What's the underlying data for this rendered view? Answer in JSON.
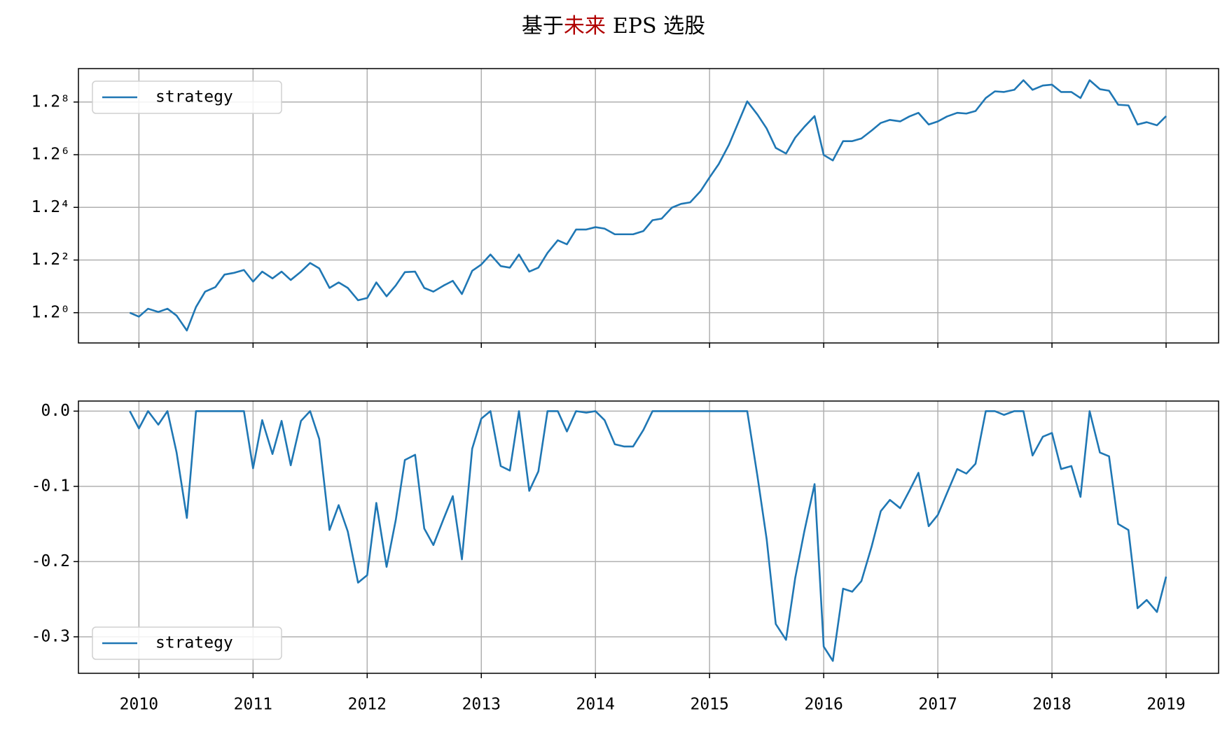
{
  "figure": {
    "title": [
      "基于",
      "未来",
      "EPS 选股"
    ],
    "title_colors": [
      "#000000",
      "#b00000",
      "#000000"
    ]
  },
  "chart_data": [
    {
      "type": "line",
      "yscale": "log",
      "grid": true,
      "legend": "upper left",
      "show_xticklabels": false,
      "xlim": [
        2009.47,
        2019.46
      ],
      "xticks": [
        2010,
        2011,
        2012,
        2013,
        2014,
        2015,
        2016,
        2017,
        2018,
        2019
      ],
      "ylim": [
        0.811,
        5.42
      ],
      "yticks": [
        {
          "value": 1,
          "label": "1.2⁰"
        },
        {
          "value": 1.44,
          "label": "1.2²"
        },
        {
          "value": 2.0736,
          "label": "1.2⁴"
        },
        {
          "value": 2.985984,
          "label": "1.2⁶"
        },
        {
          "value": 4.29981696,
          "label": "1.2⁸"
        }
      ],
      "x": [
        2009.92,
        2010.0,
        2010.08,
        2010.17,
        2010.25,
        2010.33,
        2010.42,
        2010.5,
        2010.58,
        2010.67,
        2010.75,
        2010.83,
        2010.92,
        2011.0,
        2011.08,
        2011.17,
        2011.25,
        2011.33,
        2011.42,
        2011.5,
        2011.58,
        2011.67,
        2011.75,
        2011.83,
        2011.92,
        2012.0,
        2012.08,
        2012.17,
        2012.25,
        2012.33,
        2012.42,
        2012.5,
        2012.58,
        2012.67,
        2012.75,
        2012.83,
        2012.92,
        2013.0,
        2013.08,
        2013.17,
        2013.25,
        2013.33,
        2013.42,
        2013.5,
        2013.58,
        2013.67,
        2013.75,
        2013.83,
        2013.92,
        2014.0,
        2014.08,
        2014.17,
        2014.25,
        2014.33,
        2014.42,
        2014.5,
        2014.58,
        2014.67,
        2014.75,
        2014.83,
        2014.92,
        2015.0,
        2015.08,
        2015.17,
        2015.25,
        2015.33,
        2015.42,
        2015.5,
        2015.58,
        2015.67,
        2015.75,
        2015.83,
        2015.92,
        2016.0,
        2016.08,
        2016.17,
        2016.25,
        2016.33,
        2016.42,
        2016.5,
        2016.58,
        2016.67,
        2016.75,
        2016.83,
        2016.92,
        2017.0,
        2017.08,
        2017.17,
        2017.25,
        2017.33,
        2017.42,
        2017.5,
        2017.58,
        2017.67,
        2017.75,
        2017.83,
        2017.92,
        2018.0,
        2018.08,
        2018.17,
        2018.25,
        2018.33,
        2018.42,
        2018.5,
        2018.58,
        2018.67,
        2018.75,
        2018.83,
        2018.92,
        2019.0
      ],
      "series": [
        {
          "name": "strategy",
          "color": "#1f77b4",
          "values": [
            1.0,
            0.973,
            1.028,
            1.005,
            1.028,
            0.98,
            0.884,
            1.04,
            1.157,
            1.194,
            1.302,
            1.317,
            1.344,
            1.24,
            1.329,
            1.268,
            1.329,
            1.254,
            1.329,
            1.411,
            1.359,
            1.187,
            1.233,
            1.187,
            1.09,
            1.107,
            1.233,
            1.12,
            1.207,
            1.324,
            1.329,
            1.187,
            1.157,
            1.207,
            1.247,
            1.138,
            1.336,
            1.396,
            1.496,
            1.381,
            1.366,
            1.496,
            1.329,
            1.366,
            1.513,
            1.651,
            1.606,
            1.779,
            1.779,
            1.808,
            1.79,
            1.721,
            1.721,
            1.721,
            1.76,
            1.897,
            1.918,
            2.07,
            2.124,
            2.147,
            2.318,
            2.552,
            2.797,
            3.2,
            3.719,
            4.32,
            3.94,
            3.58,
            3.13,
            3.01,
            3.36,
            3.62,
            3.9,
            2.98,
            2.87,
            3.28,
            3.28,
            3.34,
            3.53,
            3.72,
            3.8,
            3.76,
            3.89,
            3.99,
            3.68,
            3.76,
            3.89,
            3.99,
            3.97,
            4.04,
            4.42,
            4.63,
            4.61,
            4.68,
            5.0,
            4.68,
            4.82,
            4.85,
            4.61,
            4.61,
            4.42,
            5.0,
            4.7,
            4.65,
            4.22,
            4.2,
            3.68,
            3.74,
            3.66,
            3.9
          ]
        }
      ]
    },
    {
      "type": "line",
      "grid": true,
      "legend": "lower left",
      "show_xticklabels": true,
      "xlim": [
        2009.47,
        2019.46
      ],
      "xticks": [
        2010,
        2011,
        2012,
        2013,
        2014,
        2015,
        2016,
        2017,
        2018,
        2019
      ],
      "ylim": [
        -0.3485,
        0.0134
      ],
      "yticks": [
        {
          "value": 0,
          "label": "0.0"
        },
        -0.1,
        -0.2,
        -0.3
      ],
      "x": [
        2009.92,
        2010.0,
        2010.08,
        2010.17,
        2010.25,
        2010.33,
        2010.42,
        2010.5,
        2010.58,
        2010.67,
        2010.75,
        2010.83,
        2010.92,
        2011.0,
        2011.08,
        2011.17,
        2011.25,
        2011.33,
        2011.42,
        2011.5,
        2011.58,
        2011.67,
        2011.75,
        2011.83,
        2011.92,
        2012.0,
        2012.08,
        2012.17,
        2012.25,
        2012.33,
        2012.42,
        2012.5,
        2012.58,
        2012.67,
        2012.75,
        2012.83,
        2012.92,
        2013.0,
        2013.08,
        2013.17,
        2013.25,
        2013.33,
        2013.42,
        2013.5,
        2013.58,
        2013.67,
        2013.75,
        2013.83,
        2013.92,
        2014.0,
        2014.08,
        2014.17,
        2014.25,
        2014.33,
        2014.42,
        2014.5,
        2014.58,
        2014.67,
        2014.75,
        2014.83,
        2014.92,
        2015.0,
        2015.08,
        2015.17,
        2015.25,
        2015.33,
        2015.42,
        2015.5,
        2015.58,
        2015.67,
        2015.75,
        2015.83,
        2015.92,
        2016.0,
        2016.08,
        2016.17,
        2016.25,
        2016.33,
        2016.42,
        2016.5,
        2016.58,
        2016.67,
        2016.75,
        2016.83,
        2016.92,
        2017.0,
        2017.08,
        2017.17,
        2017.25,
        2017.33,
        2017.42,
        2017.5,
        2017.58,
        2017.67,
        2017.75,
        2017.83,
        2017.92,
        2018.0,
        2018.08,
        2018.17,
        2018.25,
        2018.33,
        2018.42,
        2018.5,
        2018.58,
        2018.67,
        2018.75,
        2018.83,
        2018.92,
        2019.0
      ],
      "series": [
        {
          "name": "strategy",
          "color": "#1f77b4",
          "values": [
            0,
            -0.023,
            0,
            -0.018,
            0,
            -0.055,
            -0.142,
            0,
            0,
            0,
            0,
            0,
            0,
            -0.076,
            -0.012,
            -0.057,
            -0.013,
            -0.072,
            -0.013,
            0,
            -0.037,
            -0.158,
            -0.125,
            -0.16,
            -0.228,
            -0.218,
            -0.122,
            -0.207,
            -0.145,
            -0.065,
            -0.058,
            -0.156,
            -0.178,
            -0.143,
            -0.113,
            -0.197,
            -0.05,
            -0.01,
            0,
            -0.073,
            -0.079,
            0,
            -0.106,
            -0.08,
            0,
            0,
            -0.027,
            0,
            -0.002,
            0,
            -0.012,
            -0.044,
            -0.047,
            -0.047,
            -0.025,
            0,
            0,
            0,
            0,
            0,
            0,
            0,
            0,
            0,
            0,
            0,
            -0.087,
            -0.17,
            -0.283,
            -0.304,
            -0.222,
            -0.16,
            -0.097,
            -0.313,
            -0.332,
            -0.236,
            -0.24,
            -0.226,
            -0.18,
            -0.133,
            -0.118,
            -0.129,
            -0.106,
            -0.082,
            -0.153,
            -0.138,
            -0.109,
            -0.077,
            -0.083,
            -0.07,
            0,
            0,
            -0.005,
            0,
            0,
            -0.059,
            -0.034,
            -0.029,
            -0.077,
            -0.073,
            -0.114,
            0,
            -0.055,
            -0.06,
            -0.15,
            -0.158,
            -0.262,
            -0.251,
            -0.267,
            -0.22
          ]
        }
      ]
    }
  ]
}
